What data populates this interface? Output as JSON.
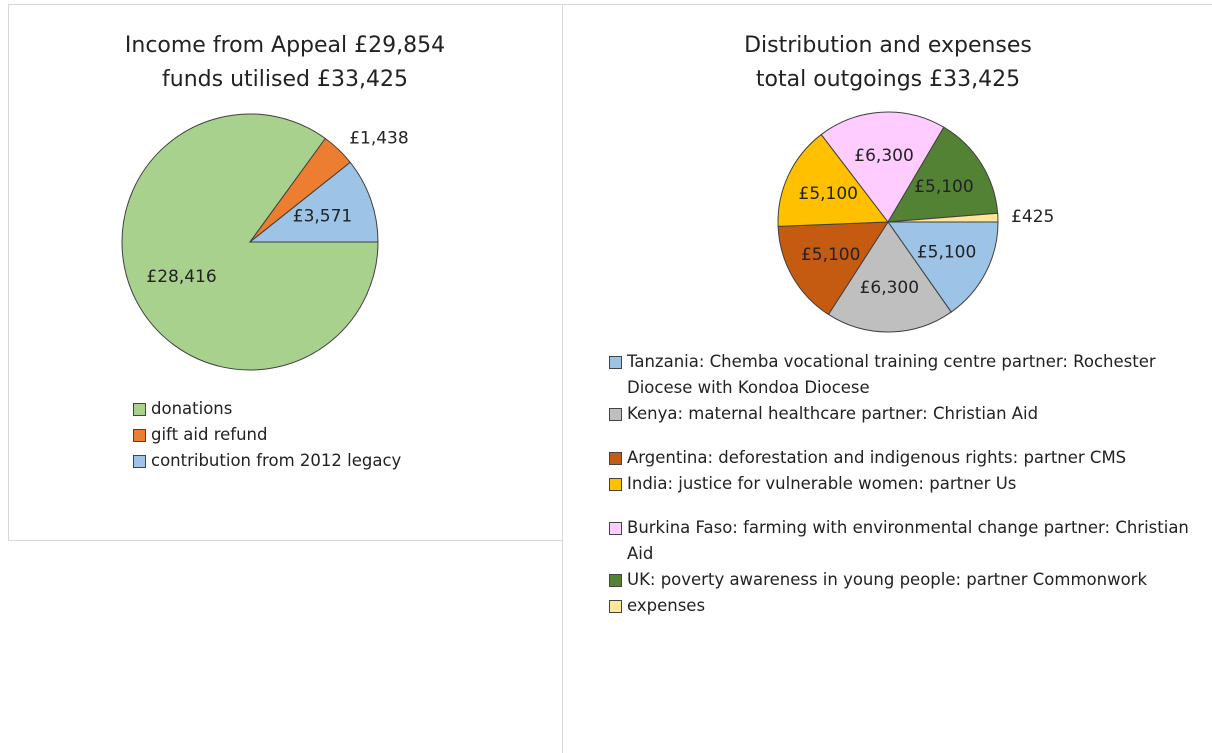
{
  "chart_data": [
    {
      "type": "pie",
      "title": [
        "Income from Appeal £29,854",
        "funds utilised £33,425"
      ],
      "categories": [
        "donations",
        "gift aid refund",
        "contribution from 2012 legacy"
      ],
      "values": [
        28416,
        1438,
        3571
      ],
      "value_labels": [
        "£28,416",
        "£1,438",
        "£3,571"
      ],
      "colors": [
        "#a9d18e",
        "#ed7d31",
        "#9dc3e6"
      ],
      "legend": "bottom"
    },
    {
      "type": "pie",
      "title": [
        "Distribution  and expenses",
        "total outgoings  £33,425"
      ],
      "categories": [
        "Tanzania: Chemba vocational training centre partner: Rochester Diocese with Kondoa Diocese",
        "Kenya: maternal healthcare partner: Christian Aid",
        "Argentina: deforestation and indigenous rights: partner CMS",
        "India: justice for vulnerable women: partner Us",
        "Burkina Faso: farming with environmental change partner: Christian Aid",
        "UK: poverty awareness in young people: partner Commonwork",
        "expenses"
      ],
      "values": [
        5100,
        6300,
        5100,
        5100,
        6300,
        5100,
        425
      ],
      "value_labels": [
        "£5,100",
        "£6,300",
        "£5,100",
        "£5,100",
        "£6,300",
        "£5,100",
        "£425"
      ],
      "colors": [
        "#9dc3e6",
        "#bfbfbf",
        "#c55a11",
        "#ffc000",
        "#ffccff",
        "#548235",
        "#ffe699"
      ],
      "legend": "bottom"
    }
  ]
}
